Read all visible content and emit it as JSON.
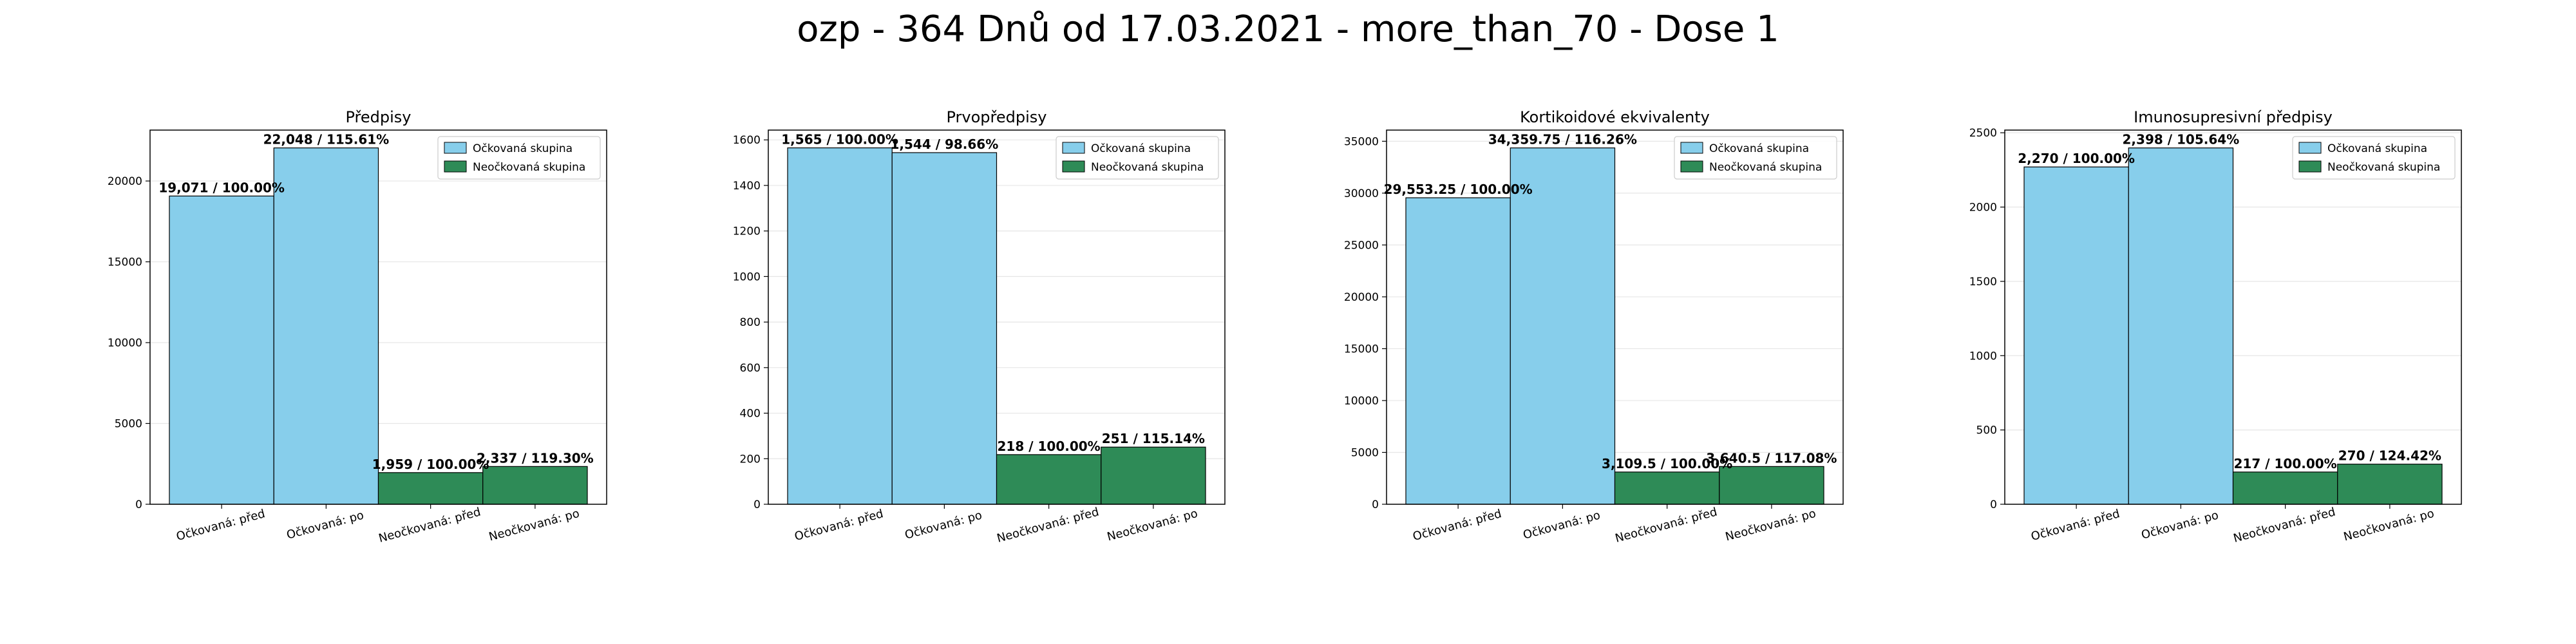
{
  "title": "ozp - 364 Dnů od 17.03.2021 - more_than_70 - Dose 1",
  "colors": {
    "vaccinated": "#87CEEB",
    "unvaccinated": "#2E8B57",
    "grid": "#e6e6e6"
  },
  "legend": {
    "vaccinated": "Očkovaná skupina",
    "unvaccinated": "Neočkovaná skupina"
  },
  "chart_data": [
    {
      "type": "bar",
      "title": "Předpisy",
      "categories": [
        "Očkovaná: před",
        "Očkovaná: po",
        "Neočkovaná: před",
        "Neočkovaná: po"
      ],
      "values": [
        19071,
        22048,
        1959,
        2337
      ],
      "labels": [
        "19,071 / 100.00%",
        "22,048 / 115.61%",
        "1,959 / 100.00%",
        "2,337 / 119.30%"
      ],
      "ylim": [
        0,
        23150
      ],
      "yticks": [
        0,
        5000,
        10000,
        15000,
        20000
      ],
      "legend_position": "top-right",
      "grid": true
    },
    {
      "type": "bar",
      "title": "Prvopředpisy",
      "categories": [
        "Očkovaná: před",
        "Očkovaná: po",
        "Neočkovaná: před",
        "Neočkovaná: po"
      ],
      "values": [
        1565,
        1544,
        218,
        251
      ],
      "labels": [
        "1,565 / 100.00%",
        "1,544 / 98.66%",
        "218 / 100.00%",
        "251 / 115.14%"
      ],
      "ylim": [
        0,
        1643
      ],
      "yticks": [
        0,
        200,
        400,
        600,
        800,
        1000,
        1200,
        1400,
        1600
      ],
      "legend_position": "top-right",
      "grid": true
    },
    {
      "type": "bar",
      "title": "Kortikoidové ekvivalenty",
      "categories": [
        "Očkovaná: před",
        "Očkovaná: po",
        "Neočkovaná: před",
        "Neočkovaná: po"
      ],
      "values": [
        29553.25,
        34359.75,
        3109.5,
        3640.5
      ],
      "labels": [
        "29,553.25 / 100.00%",
        "34,359.75 / 116.26%",
        "3,109.5 / 100.00%",
        "3,640.5 / 117.08%"
      ],
      "ylim": [
        0,
        36078
      ],
      "yticks": [
        0,
        5000,
        10000,
        15000,
        20000,
        25000,
        30000,
        35000
      ],
      "legend_position": "top-right",
      "grid": true
    },
    {
      "type": "bar",
      "title": "Imunosupresivní předpisy",
      "categories": [
        "Očkovaná: před",
        "Očkovaná: po",
        "Neočkovaná: před",
        "Neočkovaná: po"
      ],
      "values": [
        2270,
        2398,
        217,
        270
      ],
      "labels": [
        "2,270 / 100.00%",
        "2,398 / 105.64%",
        "217 / 100.00%",
        "270 / 124.42%"
      ],
      "ylim": [
        0,
        2518
      ],
      "yticks": [
        0,
        500,
        1000,
        1500,
        2000,
        2500
      ],
      "legend_position": "top-right",
      "grid": true
    }
  ]
}
